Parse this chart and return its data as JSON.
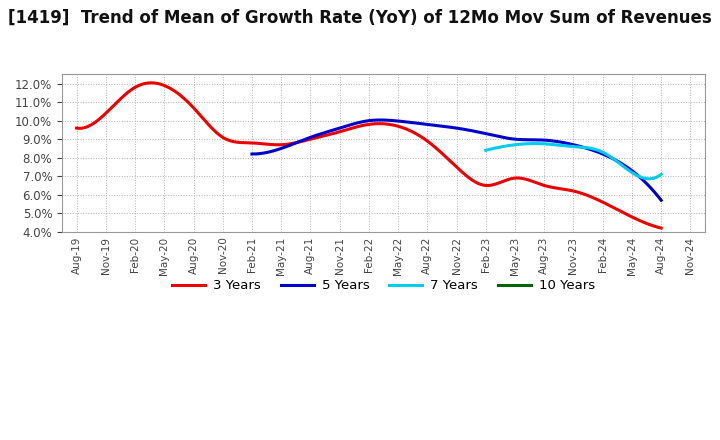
{
  "title": "[1419]  Trend of Mean of Growth Rate (YoY) of 12Mo Mov Sum of Revenues",
  "ylim": [
    0.04,
    0.125
  ],
  "yticks": [
    0.04,
    0.05,
    0.06,
    0.07,
    0.08,
    0.09,
    0.1,
    0.11,
    0.12
  ],
  "background_color": "#ffffff",
  "plot_bg_color": "#ffffff",
  "grid_color": "#b0b0b0",
  "title_fontsize": 12,
  "legend": [
    "3 Years",
    "5 Years",
    "7 Years",
    "10 Years"
  ],
  "legend_colors": [
    "#ee0000",
    "#0000cc",
    "#00ccee",
    "#006600"
  ],
  "x_labels": [
    "Aug-19",
    "Nov-19",
    "Feb-20",
    "May-20",
    "Aug-20",
    "Nov-20",
    "Feb-21",
    "May-21",
    "Aug-21",
    "Nov-21",
    "Feb-22",
    "May-22",
    "Aug-22",
    "Nov-22",
    "Feb-23",
    "May-23",
    "Aug-23",
    "Nov-23",
    "Feb-24",
    "May-24",
    "Aug-24",
    "Nov-24"
  ],
  "series_3y_x": [
    0,
    1,
    2,
    3,
    4,
    5,
    6,
    7,
    8,
    9,
    10,
    11,
    12,
    13,
    14,
    15,
    16,
    17,
    18,
    19,
    20
  ],
  "series_3y_y": [
    0.096,
    0.104,
    0.118,
    0.119,
    0.107,
    0.091,
    0.088,
    0.087,
    0.09,
    0.094,
    0.098,
    0.097,
    0.089,
    0.075,
    0.065,
    0.069,
    0.065,
    0.062,
    0.056,
    0.048,
    0.042
  ],
  "series_5y_x": [
    6,
    7,
    8,
    9,
    10,
    11,
    12,
    13,
    14,
    15,
    16,
    17,
    18,
    19,
    20
  ],
  "series_5y_y": [
    0.082,
    0.085,
    0.091,
    0.096,
    0.1,
    0.0998,
    0.098,
    0.096,
    0.093,
    0.09,
    0.0895,
    0.087,
    0.082,
    0.073,
    0.057
  ],
  "series_7y_x": [
    14,
    15,
    16,
    17,
    18,
    19,
    20
  ],
  "series_7y_y": [
    0.084,
    0.087,
    0.0875,
    0.086,
    0.083,
    0.072,
    0.071
  ],
  "series_10y_x": [],
  "series_10y_y": []
}
